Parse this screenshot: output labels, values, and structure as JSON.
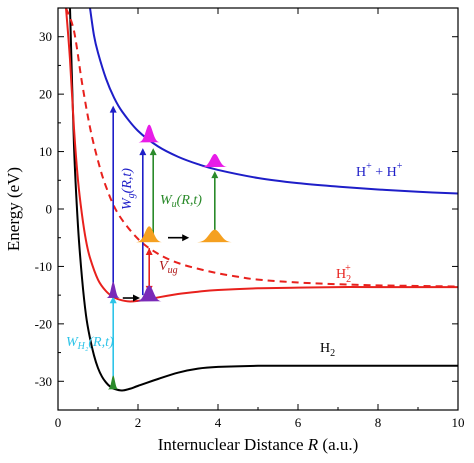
{
  "chart_data": {
    "type": "line",
    "xlabel_prefix": "Internuclear Distance ",
    "xlabel_var": "R",
    "xlabel_suffix": "  (a.u.)",
    "ylabel": "Energy (eV)",
    "xlim": [
      0,
      10
    ],
    "ylim": [
      -35,
      35
    ],
    "x_ticks": [
      0,
      2,
      4,
      6,
      8,
      10
    ],
    "y_ticks": [
      -30,
      -20,
      -10,
      0,
      10,
      20,
      30
    ],
    "grid": false,
    "colors": {
      "black": "#000000",
      "red": "#e8211d",
      "blue": "#1e1ec8",
      "cyan": "#2ec4e8",
      "green": "#2a8a2a",
      "orange": "#f5a020",
      "magenta": "#e81ce8",
      "purple": "#7a2ab8",
      "darkred": "#b01818"
    },
    "series": [
      {
        "name": "H2",
        "color": "#000000",
        "dashed": false,
        "x": [
          0.3,
          0.4,
          0.5,
          0.6,
          0.7,
          0.8,
          0.9,
          1.0,
          1.1,
          1.2,
          1.3,
          1.4,
          1.6,
          1.8,
          2.0,
          2.5,
          3.0,
          3.5,
          4.0,
          5.0,
          6.0,
          7.0,
          8.0,
          9.0,
          10.0
        ],
        "y": [
          35,
          11,
          -3,
          -12,
          -18.5,
          -22.5,
          -25.5,
          -27.7,
          -29.2,
          -30.2,
          -30.9,
          -31.3,
          -31.6,
          -31.3,
          -30.8,
          -29.6,
          -28.5,
          -27.8,
          -27.5,
          -27.3,
          -27.3,
          -27.3,
          -27.3,
          -27.3,
          -27.3
        ]
      },
      {
        "name": "H2+ ground",
        "color": "#e8211d",
        "dashed": false,
        "x": [
          0.2,
          0.3,
          0.4,
          0.5,
          0.6,
          0.7,
          0.8,
          1.0,
          1.2,
          1.4,
          1.6,
          1.8,
          2.0,
          2.2,
          2.5,
          3.0,
          3.5,
          4.0,
          5.0,
          6.0,
          7.0,
          8.0,
          10.0
        ],
        "y": [
          35,
          26,
          14,
          5,
          -1,
          -5.5,
          -8.5,
          -12.3,
          -14.3,
          -15.4,
          -15.9,
          -16.1,
          -16.0,
          -15.8,
          -15.4,
          -14.8,
          -14.4,
          -14.1,
          -13.8,
          -13.7,
          -13.6,
          -13.6,
          -13.6
        ]
      },
      {
        "name": "H2+ excited",
        "color": "#e8211d",
        "dashed": true,
        "x": [
          0.2,
          0.4,
          0.6,
          0.8,
          1.0,
          1.2,
          1.5,
          2.0,
          2.5,
          3.0,
          3.5,
          4.0,
          4.5,
          5.0,
          6.0,
          7.0,
          8.0,
          9.0,
          10.0
        ],
        "y": [
          35,
          31,
          22,
          14.2,
          8.4,
          3.9,
          -0.8,
          -5.2,
          -7.8,
          -9.4,
          -10.4,
          -11.2,
          -11.8,
          -12.3,
          -12.8,
          -13.1,
          -13.3,
          -13.4,
          -13.5
        ]
      },
      {
        "name": "H+ + H+",
        "color": "#1e1ec8",
        "dashed": false,
        "x": [
          0.8,
          0.9,
          1.0,
          1.2,
          1.4,
          1.6,
          2.0,
          2.5,
          3.0,
          3.5,
          4.0,
          5.0,
          6.0,
          7.0,
          8.0,
          9.0,
          10.0
        ],
        "y": [
          35,
          30.2,
          27.2,
          22.7,
          19.4,
          17.0,
          13.6,
          10.9,
          9.1,
          7.8,
          6.8,
          5.4,
          4.5,
          3.9,
          3.4,
          3.0,
          2.7
        ]
      }
    ],
    "packets": [
      {
        "name": "green-ground-packet",
        "x": 1.38,
        "y": -31.4,
        "color": "#2a8a2a",
        "width": 0.26,
        "height": 2.4
      },
      {
        "name": "purple-packet-left",
        "x": 1.38,
        "y": -15.5,
        "color": "#7a2ab8",
        "width": 0.32,
        "height": 2.8
      },
      {
        "name": "purple-packet-right",
        "x": 2.28,
        "y": -16.1,
        "color": "#7a2ab8",
        "width": 0.62,
        "height": 2.8
      },
      {
        "name": "orange-packet-left",
        "x": 2.28,
        "y": -5.8,
        "color": "#f5a020",
        "width": 0.64,
        "height": 2.8
      },
      {
        "name": "orange-packet-right",
        "x": 3.92,
        "y": -5.8,
        "color": "#f5a020",
        "width": 0.86,
        "height": 2.2
      },
      {
        "name": "magenta-packet-left",
        "x": 2.28,
        "y": 11.6,
        "color": "#e81ce8",
        "width": 0.52,
        "height": 3.1
      },
      {
        "name": "magenta-packet-right",
        "x": 3.92,
        "y": 7.3,
        "color": "#e81ce8",
        "width": 0.62,
        "height": 2.3
      }
    ],
    "arrows": [
      {
        "name": "cyan-ionization-arrow",
        "x1": 1.38,
        "y1": -30.0,
        "x2": 1.38,
        "y2": -15.2,
        "color": "#2ec4e8",
        "double": false
      },
      {
        "name": "blue-arrow-left",
        "x1": 1.38,
        "y1": -14.0,
        "x2": 1.38,
        "y2": 18.0,
        "color": "#1e1ec8",
        "double": false
      },
      {
        "name": "blue-arrow-right",
        "x1": 2.12,
        "y1": -15.0,
        "x2": 2.12,
        "y2": 10.6,
        "color": "#1e1ec8",
        "double": false
      },
      {
        "name": "green-arrow",
        "x1": 2.38,
        "y1": -5.0,
        "x2": 2.38,
        "y2": 10.6,
        "color": "#2a8a2a",
        "double": false
      },
      {
        "name": "green-arrow-right",
        "x1": 3.92,
        "y1": -5.2,
        "x2": 3.92,
        "y2": 6.6,
        "color": "#2a8a2a",
        "double": false
      },
      {
        "name": "red-coupling-arrow",
        "x1": 2.28,
        "y1": -6.8,
        "x2": 2.28,
        "y2": -14.6,
        "color": "#e8211d",
        "double": true
      },
      {
        "name": "black-arrow-lower",
        "x1": 1.62,
        "y1": -15.5,
        "x2": 2.05,
        "y2": -15.5,
        "color": "#000000",
        "double": false
      },
      {
        "name": "black-arrow-upper",
        "x1": 2.75,
        "y1": -5.0,
        "x2": 3.28,
        "y2": -5.0,
        "color": "#000000",
        "double": false
      }
    ],
    "annotations": {
      "h2_main": "H",
      "h2_sub": "2",
      "h2p_main": "H",
      "h2p_sub": "2",
      "h2p_sup": "+",
      "hh_h1": "H",
      "hh_sup1": "+",
      "hh_plus": " + ",
      "hh_h2": "H",
      "hh_sup2": "+",
      "wg_main": "W",
      "wg_sub": "g",
      "wg_args": "(R,t)",
      "wu_main": "W",
      "wu_sub": "u",
      "wu_args": "(R,t)",
      "vug_main": "V",
      "vug_sub": "ug",
      "wh2_main": "W",
      "wh2_sub": "H₂",
      "wh2_args": "(R,t)"
    }
  }
}
